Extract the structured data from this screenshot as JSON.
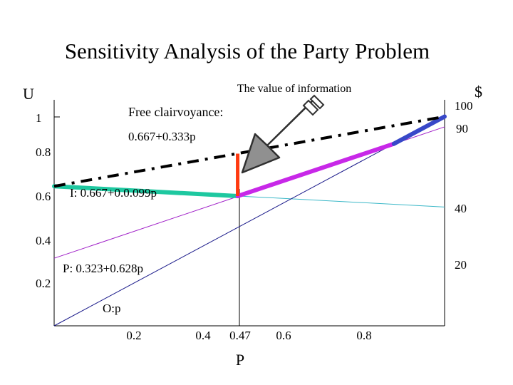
{
  "title": "Sensitivity Analysis of the Party Problem",
  "left_axis_label": "U",
  "right_axis_label": "$",
  "x_axis_label": "P",
  "x_ticks": [
    "0.2",
    "0.4",
    "0.47",
    "0.6",
    "0.8"
  ],
  "left_ticks": [
    "1",
    "0.8",
    "0.6",
    "0.4",
    "0.2"
  ],
  "right_ticks": [
    "100",
    "90",
    "40",
    "20"
  ],
  "annotations": {
    "value_of_information": "The value of information",
    "free_clairvoyance_line1": "Free clairvoyance:",
    "free_clairvoyance_line2": "0.667+0.333p",
    "indoors": "I: 0.667+0.0.099p",
    "porch": "P: 0.323+0.628p",
    "outdoors": "O:p"
  },
  "colors": {
    "indoors_line": "#3cb8c8",
    "porch_line": "#a020c8",
    "outdoors_line": "#1a1a8a",
    "best_indoors": "#1ec8a0",
    "best_porch": "#c828e8",
    "best_outdoors": "#3848c8",
    "voi_bar": "#ff3a10",
    "clairvoyance": "#000000",
    "arrow_fill": "#909090"
  },
  "chart_data": {
    "type": "line",
    "title": "Sensitivity Analysis of the Party Problem",
    "xlabel": "P",
    "ylabel": "U",
    "xlim": [
      0,
      1
    ],
    "ylim": [
      0,
      1.07
    ],
    "x_ticks": [
      0.2,
      0.4,
      0.47,
      0.6,
      0.8
    ],
    "y_ticks": [
      0.2,
      0.4,
      0.6,
      0.8,
      1
    ],
    "series": [
      {
        "name": "I: 0.667+0.0.099p",
        "x": [
          0,
          1
        ],
        "y": [
          0.667,
          0.568
        ]
      },
      {
        "name": "P: 0.323+0.628p",
        "x": [
          0,
          1
        ],
        "y": [
          0.323,
          0.951
        ]
      },
      {
        "name": "O:p",
        "x": [
          0,
          1
        ],
        "y": [
          0,
          1
        ]
      },
      {
        "name": "Free clairvoyance: 0.667+0.333p",
        "x": [
          0,
          1
        ],
        "y": [
          0.667,
          1.0
        ]
      }
    ],
    "best_decision_segments": [
      {
        "x": [
          0,
          0.47
        ],
        "y": [
          0.667,
          0.62
        ]
      },
      {
        "x": [
          0.47,
          0.87
        ],
        "y": [
          0.62,
          0.87
        ]
      },
      {
        "x": [
          0.87,
          1
        ],
        "y": [
          0.87,
          1.0
        ]
      }
    ],
    "value_of_information": {
      "x": 0.47,
      "y": [
        0.62,
        0.823
      ]
    }
  }
}
